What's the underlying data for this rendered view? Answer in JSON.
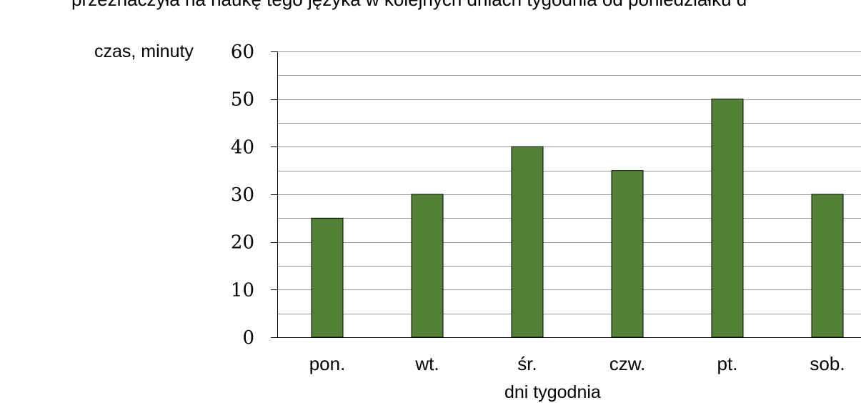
{
  "page": {
    "title": "przeznaczyła na naukę tego języka w kolejnych dniach tygodnia od poniedziałku d"
  },
  "chart_data": {
    "type": "bar",
    "categories": [
      "pon.",
      "wt.",
      "śr.",
      "czw.",
      "pt.",
      "sob."
    ],
    "values": [
      25,
      30,
      40,
      35,
      50,
      30
    ],
    "ylabel": "czas, minuty",
    "xlabel": "dni tygodnia",
    "ylim": [
      0,
      60
    ],
    "yticks": [
      0,
      10,
      20,
      30,
      40,
      50,
      60
    ],
    "grid": true,
    "bar_color": "#538135",
    "grid_color": "#999999",
    "legend": "none"
  }
}
